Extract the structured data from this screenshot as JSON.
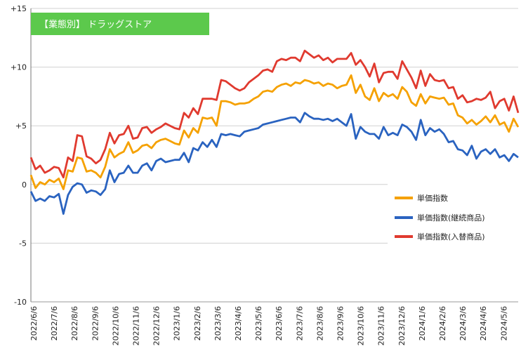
{
  "chart_data": {
    "type": "line",
    "title": "【業態別】 ドラッグストア",
    "ylim": [
      -10,
      15
    ],
    "yticks": [
      "+15",
      "+10",
      "+5",
      "0",
      "-5",
      "-10"
    ],
    "ytick_values": [
      15,
      10,
      5,
      0,
      -5,
      -10
    ],
    "x_tick_labels": [
      "2022/6/6",
      "2022/7/6",
      "2022/8/6",
      "2022/9/6",
      "2022/10/6",
      "2022/11/6",
      "2022/12/6",
      "2023/1/6",
      "2023/2/6",
      "2023/3/6",
      "2023/4/6",
      "2023/5/6",
      "2023/6/6",
      "2023/7/6",
      "2023/8/6",
      "2023/9/6",
      "2023/10/6",
      "2023/11/6",
      "2023/12/6",
      "2024/1/6",
      "2024/2/6",
      "2024/3/6",
      "2024/4/6",
      "2024/5/6"
    ],
    "legend_position": "right",
    "grid": "horizontal",
    "series": [
      {
        "name": "単価指数",
        "color": "#f5a100",
        "values": [
          0.8,
          -0.3,
          0.2,
          0.0,
          0.4,
          0.2,
          0.5,
          -0.4,
          1.2,
          1.1,
          2.3,
          2.2,
          1.1,
          1.2,
          1.0,
          0.6,
          1.5,
          3.0,
          2.3,
          2.6,
          2.8,
          3.6,
          2.7,
          2.9,
          3.3,
          3.4,
          3.1,
          3.6,
          3.8,
          3.9,
          3.7,
          3.5,
          3.4,
          4.6,
          4.0,
          4.8,
          4.4,
          5.7,
          5.6,
          5.7,
          5.0,
          7.1,
          7.1,
          7.0,
          6.8,
          6.9,
          6.9,
          7.0,
          7.3,
          7.5,
          7.9,
          8.0,
          7.9,
          8.3,
          8.5,
          8.6,
          8.4,
          8.7,
          8.6,
          8.9,
          8.8,
          8.6,
          8.7,
          8.4,
          8.6,
          8.5,
          8.2,
          8.4,
          8.5,
          9.3,
          7.8,
          8.5,
          7.5,
          7.2,
          8.2,
          7.1,
          7.8,
          7.5,
          7.7,
          7.3,
          8.3,
          7.9,
          7.0,
          6.7,
          7.7,
          6.9,
          7.5,
          7.4,
          7.3,
          7.4,
          6.8,
          6.9,
          5.9,
          5.7,
          5.2,
          5.5,
          5.1,
          5.4,
          5.8,
          5.3,
          5.9,
          5.1,
          5.3,
          4.5,
          5.6,
          4.9
        ]
      },
      {
        "name": "単価指数(継続商品)",
        "color": "#2a63c0",
        "values": [
          -0.6,
          -1.4,
          -1.2,
          -1.4,
          -1.0,
          -1.1,
          -0.8,
          -2.5,
          -0.9,
          -0.2,
          0.1,
          0.0,
          -0.7,
          -0.5,
          -0.6,
          -0.9,
          -0.4,
          1.2,
          0.2,
          0.9,
          1.0,
          1.6,
          1.0,
          1.0,
          1.6,
          1.8,
          1.2,
          2.0,
          2.2,
          1.9,
          2.0,
          2.1,
          2.1,
          2.7,
          1.9,
          3.1,
          2.9,
          3.6,
          3.2,
          3.8,
          3.2,
          4.3,
          4.2,
          4.3,
          4.2,
          4.1,
          4.5,
          4.6,
          4.7,
          4.8,
          5.1,
          5.2,
          5.3,
          5.4,
          5.5,
          5.6,
          5.7,
          5.7,
          5.3,
          6.1,
          5.8,
          5.6,
          5.6,
          5.5,
          5.6,
          5.4,
          5.6,
          5.3,
          5.0,
          6.0,
          3.9,
          4.9,
          4.5,
          4.3,
          4.3,
          3.9,
          4.9,
          4.2,
          4.4,
          4.2,
          5.1,
          4.9,
          4.5,
          3.8,
          5.5,
          4.2,
          4.8,
          4.5,
          4.7,
          4.3,
          3.6,
          3.7,
          3.0,
          2.9,
          2.5,
          3.3,
          2.2,
          2.8,
          3.0,
          2.6,
          3.0,
          2.3,
          2.5,
          2.0,
          2.6,
          2.3
        ]
      },
      {
        "name": "単価指数(入替商品)",
        "color": "#e03a2f",
        "values": [
          2.3,
          1.3,
          1.6,
          1.0,
          1.2,
          1.5,
          1.4,
          0.6,
          2.3,
          2.0,
          4.2,
          4.1,
          2.4,
          2.2,
          1.8,
          2.1,
          3.0,
          4.4,
          3.5,
          4.2,
          4.3,
          5.0,
          3.9,
          4.0,
          4.8,
          4.9,
          4.4,
          4.7,
          4.9,
          5.2,
          5.0,
          4.8,
          4.7,
          6.1,
          5.7,
          6.5,
          6.0,
          7.3,
          7.3,
          7.3,
          7.2,
          8.9,
          8.8,
          8.5,
          8.2,
          8.0,
          8.2,
          8.7,
          9.0,
          9.3,
          9.7,
          9.8,
          9.6,
          10.5,
          10.7,
          10.6,
          10.8,
          10.8,
          10.5,
          11.4,
          11.1,
          10.8,
          11.0,
          10.6,
          10.8,
          10.4,
          10.7,
          10.7,
          10.7,
          11.2,
          10.2,
          10.6,
          10.0,
          9.2,
          10.3,
          8.7,
          9.5,
          9.6,
          9.6,
          9.0,
          10.5,
          9.8,
          9.1,
          8.2,
          9.7,
          8.4,
          9.4,
          8.9,
          8.8,
          8.9,
          8.2,
          8.3,
          7.3,
          7.6,
          7.0,
          7.1,
          7.3,
          7.2,
          7.4,
          7.9,
          6.5,
          7.1,
          7.3,
          6.3,
          7.5,
          6.1
        ]
      }
    ]
  }
}
